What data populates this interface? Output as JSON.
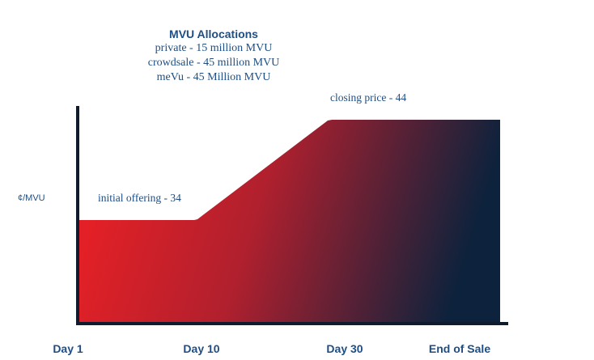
{
  "colors": {
    "text_blue": "#1e4e83",
    "axis": "#0f1c2e",
    "area_start": "#e32026",
    "area_end": "#0d223c"
  },
  "allocations": {
    "title": "MVU Allocations",
    "lines": [
      "private - 15 million MVU",
      "crowdsale - 45 million MVU",
      "meVu - 45 Million MVU"
    ]
  },
  "chart_data": {
    "type": "area",
    "title": "",
    "xlabel": "",
    "ylabel": "¢/MVU",
    "ylim": [
      0,
      50
    ],
    "x_ticks": [
      "Day 1",
      "Day 10",
      "Day 30",
      "End of Sale"
    ],
    "series": [
      {
        "points": [
          {
            "x": "Day 1",
            "y": 34
          },
          {
            "x": "Day 10",
            "y": 34
          },
          {
            "x": "Day 30",
            "y": 44
          },
          {
            "x": "End of Sale",
            "y": 44
          }
        ]
      }
    ],
    "annotations": [
      {
        "text": "initial offering - 34",
        "x": "Day 1",
        "y": 34
      },
      {
        "text": "closing price - 44",
        "x": "Day 30",
        "y": 44
      }
    ],
    "grid": false,
    "legend": "none"
  }
}
